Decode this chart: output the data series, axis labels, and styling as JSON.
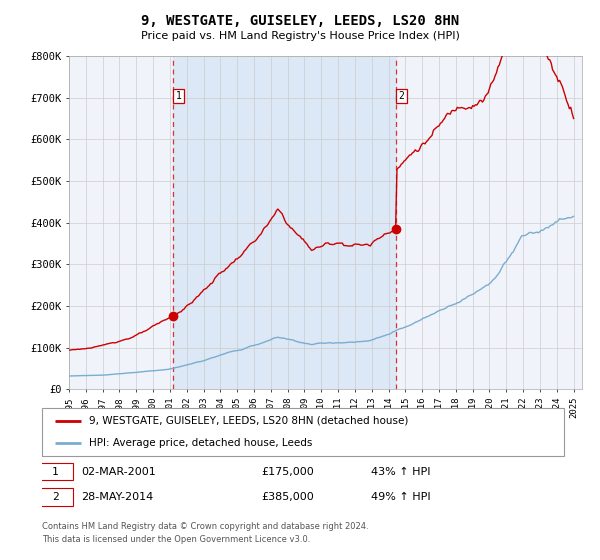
{
  "title": "9, WESTGATE, GUISELEY, LEEDS, LS20 8HN",
  "subtitle": "Price paid vs. HM Land Registry's House Price Index (HPI)",
  "ylim": [
    0,
    800000
  ],
  "yticks": [
    0,
    100000,
    200000,
    300000,
    400000,
    500000,
    600000,
    700000,
    800000
  ],
  "ytick_labels": [
    "£0",
    "£100K",
    "£200K",
    "£300K",
    "£400K",
    "£500K",
    "£600K",
    "£700K",
    "£800K"
  ],
  "red_line_color": "#cc0000",
  "blue_line_color": "#7aadcf",
  "bg_shaded_color": "#dce8f5",
  "vline_color": "#dd3333",
  "marker_color": "#cc0000",
  "transaction1_year": 2001.17,
  "transaction1_price": 175000,
  "transaction2_year": 2014.42,
  "transaction2_price": 385000,
  "legend_red_label": "9, WESTGATE, GUISELEY, LEEDS, LS20 8HN (detached house)",
  "legend_blue_label": "HPI: Average price, detached house, Leeds",
  "grid_color": "#cccccc",
  "axes_bg_color": "#f0f4fa",
  "footnote3": "Contains HM Land Registry data © Crown copyright and database right 2024.\nThis data is licensed under the Open Government Licence v3.0."
}
